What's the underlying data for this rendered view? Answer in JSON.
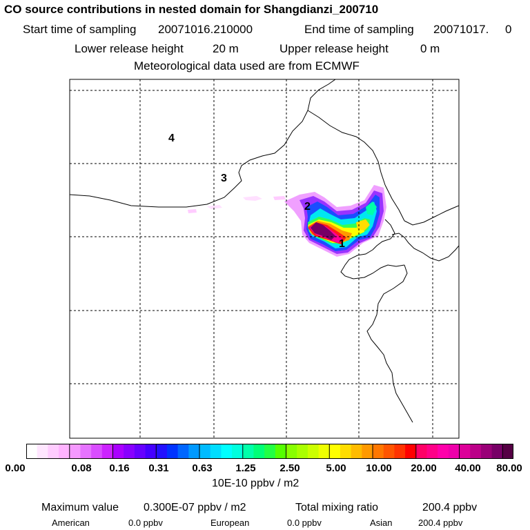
{
  "header": {
    "title": "CO  source contributions in nested domain for Shangdianzi_200710",
    "start_label": "Start time of sampling",
    "start_value": "20071016.210000",
    "end_label": "End time of sampling",
    "end_value": "20071017.     0",
    "lower_label": "Lower release height",
    "lower_value": "20 m",
    "upper_label": "Upper release height",
    "upper_value": "0 m",
    "met": "Meteorological data used are from ECMWF"
  },
  "map": {
    "region_labels": [
      "1",
      "2",
      "3",
      "4"
    ],
    "line_color": "#000000",
    "grid_style": "dashed"
  },
  "colorbar": {
    "ticks": [
      "0.00",
      "0.08",
      "0.16",
      "0.31",
      "0.63",
      "1.25",
      "2.50",
      "5.00",
      "10.00",
      "20.00",
      "40.00",
      "80.00"
    ],
    "colors": [
      "#ffffff",
      "#ffe6ff",
      "#ffccff",
      "#ffb3ff",
      "#f599ff",
      "#e673ff",
      "#d94dff",
      "#cc22ff",
      "#aa00ff",
      "#8800ff",
      "#6600ff",
      "#4400ff",
      "#2211ff",
      "#0033ff",
      "#0066ff",
      "#0099ff",
      "#00bbff",
      "#00ddff",
      "#00ffff",
      "#00ffdd",
      "#00ffaa",
      "#00ff77",
      "#22ff44",
      "#55ff00",
      "#88ff00",
      "#aaff00",
      "#ccff00",
      "#eeff00",
      "#ffff00",
      "#ffdd00",
      "#ffbb00",
      "#ff9900",
      "#ff7700",
      "#ff5500",
      "#ff3300",
      "#ff0000",
      "#ff0066",
      "#ff0088",
      "#ff00aa",
      "#ee00aa",
      "#dd0099",
      "#bb0088",
      "#990077",
      "#770066",
      "#550044"
    ],
    "unit": "10E-10 ppbv / m2"
  },
  "footer": {
    "max_label": "Maximum value",
    "max_value": "0.300E-07 ppbv / m2",
    "total_label": "Total mixing ratio",
    "total_value": "200.4 ppbv",
    "american_label": "American",
    "american_value": "0.0 ppbv",
    "european_label": "European",
    "european_value": "0.0 ppbv",
    "asian_label": "Asian",
    "asian_value": "200.4 ppbv"
  }
}
